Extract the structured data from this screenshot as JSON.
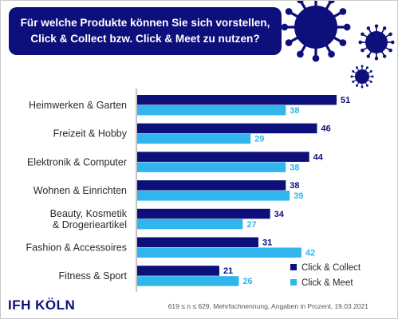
{
  "title": "Für welche Produkte können Sie sich vorstellen, Click & Collect bzw. Click & Meet zu nutzen?",
  "logo": "IFH KÖLN",
  "footnote": "619 ≤ n ≤ 629, Mehrfachnennung, Angaben in Prozent, 19.03.2021",
  "colors": {
    "navy": "#0d0f7a",
    "light_blue": "#30b6ec"
  },
  "decoration": "virus-icon",
  "chart_data": {
    "type": "bar",
    "orientation": "horizontal",
    "categories": [
      [
        "Heimwerken & Garten"
      ],
      [
        "Freizeit & Hobby"
      ],
      [
        "Elektronik & Computer"
      ],
      [
        "Wohnen & Einrichten"
      ],
      [
        "Beauty, Kosmetik",
        "& Drogerieartikel"
      ],
      [
        "Fashion & Accessoires"
      ],
      [
        "Fitness & Sport"
      ]
    ],
    "series": [
      {
        "name": "Click & Collect",
        "values": [
          51,
          46,
          44,
          38,
          34,
          31,
          21
        ],
        "color": "#0d0f7a"
      },
      {
        "name": "Click & Meet",
        "values": [
          38,
          29,
          38,
          39,
          27,
          42,
          26
        ],
        "color": "#30b6ec"
      }
    ],
    "xlim": [
      0,
      51
    ],
    "legend_position": "bottom-right",
    "grid": false
  }
}
